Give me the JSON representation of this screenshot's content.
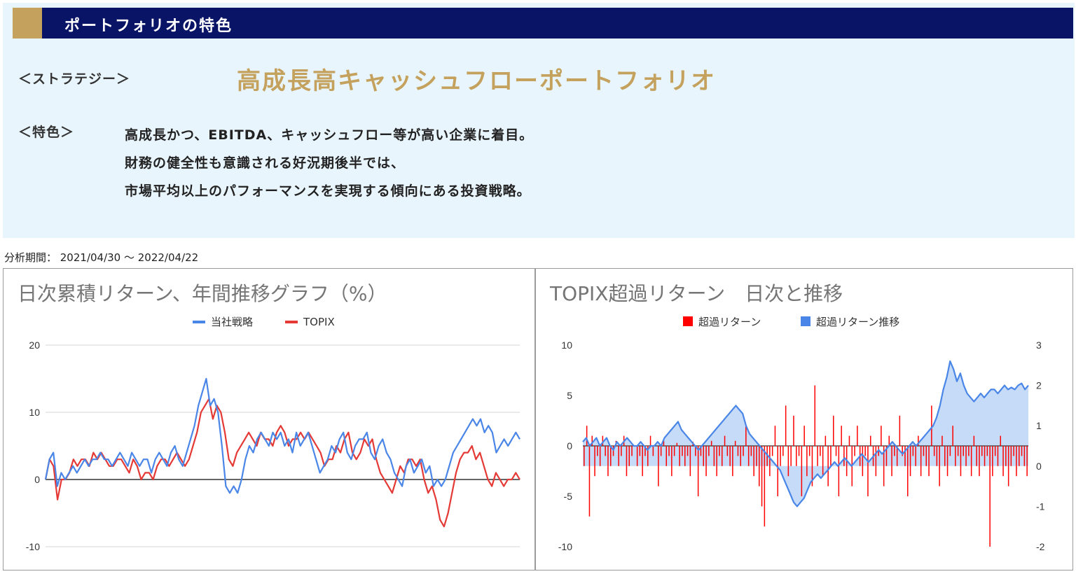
{
  "header": {
    "title": "ポートフォリオの特色"
  },
  "strategy": {
    "label": "＜ストラテジー＞",
    "name": "高成長高キャッシュフローポートフォリオ"
  },
  "features": {
    "label": "＜特色＞",
    "lines": [
      "高成長かつ、EBITDA、キャッシュフロー等が高い企業に着目。",
      "財務の健全性も意識される好況期後半では、",
      "市場平均以上のパフォーマンスを実現する傾向にある投資戦略。"
    ]
  },
  "analysis_period": "分析期間： 2021/04/30 ～ 2022/04/22",
  "colors": {
    "header_bg": "#0a1466",
    "gold": "#c4a25e",
    "panel_bg": "#e9f5fd",
    "blue": "#4a86e8",
    "red": "#e53935",
    "bar_red": "#ff0000"
  },
  "chart_data": [
    {
      "type": "line",
      "title": "日次累積リターン、年間推移グラフ（%）",
      "ylim": [
        -10,
        20
      ],
      "yticks": [
        "20",
        "10",
        "0",
        "-10"
      ],
      "legend_position": "top",
      "grid": true,
      "series": [
        {
          "name": "当社戦略",
          "color": "#4a86e8",
          "values": [
            0,
            3,
            4,
            -1,
            1,
            0,
            1,
            2,
            1,
            2,
            3,
            2,
            3,
            3,
            4,
            3,
            3,
            2,
            3,
            4,
            3,
            2,
            4,
            3,
            2,
            3,
            3,
            1,
            3,
            4,
            3,
            2,
            4,
            5,
            3,
            2,
            4,
            6,
            8,
            11,
            13,
            15,
            11,
            12,
            10,
            5,
            -1,
            -2,
            -1,
            -2,
            0,
            3,
            5,
            4,
            6,
            7,
            6,
            5,
            7,
            6,
            7,
            5,
            6,
            4,
            7,
            5,
            6,
            7,
            5,
            3,
            1,
            2,
            3,
            5,
            4,
            6,
            7,
            4,
            3,
            5,
            6,
            6,
            7,
            4,
            3,
            5,
            6,
            4,
            3,
            1,
            0,
            -1,
            2,
            3,
            1,
            2,
            3,
            1,
            2,
            -1,
            0,
            -1,
            0,
            2,
            4,
            5,
            6,
            7,
            8,
            9,
            8,
            9,
            7,
            8,
            7,
            4,
            5,
            6,
            5,
            6,
            7,
            6
          ]
        },
        {
          "name": "TOPIX",
          "color": "#e53935",
          "values": [
            0,
            3,
            2,
            -3,
            0,
            0,
            1,
            3,
            2,
            3,
            3,
            2,
            4,
            3,
            4,
            3,
            2,
            2,
            3,
            3,
            2,
            1,
            3,
            2,
            0,
            1,
            1,
            0,
            2,
            3,
            3,
            2,
            3,
            4,
            3,
            2,
            3,
            5,
            7,
            10,
            11,
            12,
            9,
            11,
            10,
            7,
            3,
            2,
            4,
            5,
            6,
            7,
            6,
            5,
            7,
            6,
            6,
            5,
            7,
            8,
            7,
            5,
            6,
            6,
            7,
            6,
            7,
            6,
            5,
            4,
            2,
            3,
            3,
            5,
            4,
            6,
            7,
            4,
            3,
            4,
            6,
            5,
            6,
            3,
            1,
            0,
            -1,
            -2,
            0,
            2,
            1,
            3,
            3,
            2,
            3,
            0,
            -2,
            -1,
            -3,
            -6,
            -7,
            -5,
            -2,
            1,
            3,
            4,
            4,
            5,
            3,
            4,
            2,
            0,
            -1,
            1,
            0,
            -1,
            0,
            0,
            1,
            0
          ]
        }
      ]
    },
    {
      "type": "bar",
      "title": "TOPIX超過リターン　日次と推移",
      "ylim": [
        -10,
        10
      ],
      "yticks": [
        "10",
        "5",
        "0",
        "-5",
        "-10"
      ],
      "y2lim": [
        -2,
        3
      ],
      "y2ticks": [
        "3",
        "2",
        "1",
        "0",
        "-1",
        "-2"
      ],
      "legend_position": "top",
      "grid": false,
      "series": [
        {
          "name": "超過リターン",
          "color": "#ff0000",
          "kind": "bar",
          "axis": "left",
          "values": [
            -2,
            2,
            -7,
            1,
            -3,
            -1,
            -2,
            1,
            -1,
            -3,
            -2,
            -1,
            0.5,
            -2,
            -1,
            1,
            -3,
            -2,
            -1,
            0,
            -2,
            -1,
            -3,
            -1,
            -2,
            1,
            -1,
            0,
            -4,
            -1,
            0.5,
            -2,
            -1,
            -3,
            -1,
            0.3,
            -2,
            -1,
            -2,
            -1,
            -3,
            0.4,
            -1,
            -5,
            -1,
            -2,
            -3,
            -1,
            0.5,
            -2,
            -3,
            -1,
            -2,
            1,
            -1,
            -2,
            -3,
            0.5,
            -1,
            -2,
            -1,
            2,
            -2,
            -1,
            -3,
            -2,
            -4,
            -6,
            -8,
            -2,
            -3,
            -1,
            2,
            -5,
            -2,
            -1,
            4,
            -3,
            -2,
            3,
            -2,
            -1,
            -5,
            2,
            -3,
            -1,
            -4,
            6,
            -2,
            -1,
            -3,
            1,
            -4,
            -2,
            3,
            -1,
            -5,
            2,
            -2,
            -3,
            1,
            -4,
            -1,
            2,
            -2,
            -3,
            -1,
            -5,
            1,
            -2,
            -3,
            -1,
            2,
            -4,
            -2,
            1,
            -3,
            -1,
            -2,
            3,
            -1,
            -2,
            -5,
            -3,
            -1,
            -2,
            1,
            -3,
            -1,
            -2,
            -3,
            4,
            -1,
            -2,
            -4,
            1,
            -2,
            -3,
            -1,
            2,
            -2,
            -1,
            -3,
            -1,
            -2,
            -1,
            -3,
            1,
            -2,
            -3,
            -1,
            -2,
            -1,
            -10,
            -3,
            -1,
            -2,
            1,
            -3,
            -2,
            -4,
            -2,
            -1,
            -3,
            -2,
            -1,
            -2,
            -3
          ]
        },
        {
          "name": "超過リターン推移",
          "color": "#4a86e8",
          "kind": "area",
          "axis": "right",
          "values": [
            0.6,
            0.7,
            0.5,
            0.6,
            0.7,
            0.5,
            0.6,
            0.7,
            0.5,
            0.4,
            0.6,
            0.5,
            0.6,
            0.7,
            0.6,
            0.5,
            0.5,
            0.6,
            0.5,
            0.4,
            0.5,
            0.5,
            0.6,
            0.5,
            0.7,
            0.8,
            0.9,
            1.0,
            1.1,
            0.9,
            0.8,
            0.7,
            0.6,
            0.5,
            0.4,
            0.5,
            0.6,
            0.7,
            0.8,
            0.9,
            1.0,
            1.1,
            1.2,
            1.3,
            1.4,
            1.5,
            1.4,
            1.3,
            1.0,
            0.8,
            0.7,
            0.6,
            0.5,
            0.4,
            0.3,
            0.2,
            0.1,
            0.0,
            -0.1,
            -0.3,
            -0.5,
            -0.7,
            -0.9,
            -1.0,
            -0.9,
            -0.8,
            -0.6,
            -0.4,
            -0.3,
            -0.2,
            -0.3,
            -0.2,
            -0.1,
            0.0,
            0.1,
            0.0,
            0.1,
            0.2,
            0.1,
            0.0,
            0.1,
            0.2,
            0.3,
            0.2,
            0.1,
            0.2,
            0.3,
            0.4,
            0.3,
            0.4,
            0.5,
            0.6,
            0.5,
            0.4,
            0.3,
            0.4,
            0.5,
            0.6,
            0.5,
            0.6,
            0.7,
            0.8,
            0.9,
            1.0,
            1.2,
            1.5,
            1.9,
            2.2,
            2.6,
            2.4,
            2.1,
            2.3,
            2.0,
            1.8,
            1.7,
            1.6,
            1.7,
            1.8,
            1.7,
            1.8,
            1.9,
            1.9,
            1.8,
            1.9,
            2.0,
            1.9,
            1.95,
            1.9,
            2.0,
            2.05,
            1.9,
            2.0
          ]
        }
      ]
    }
  ]
}
